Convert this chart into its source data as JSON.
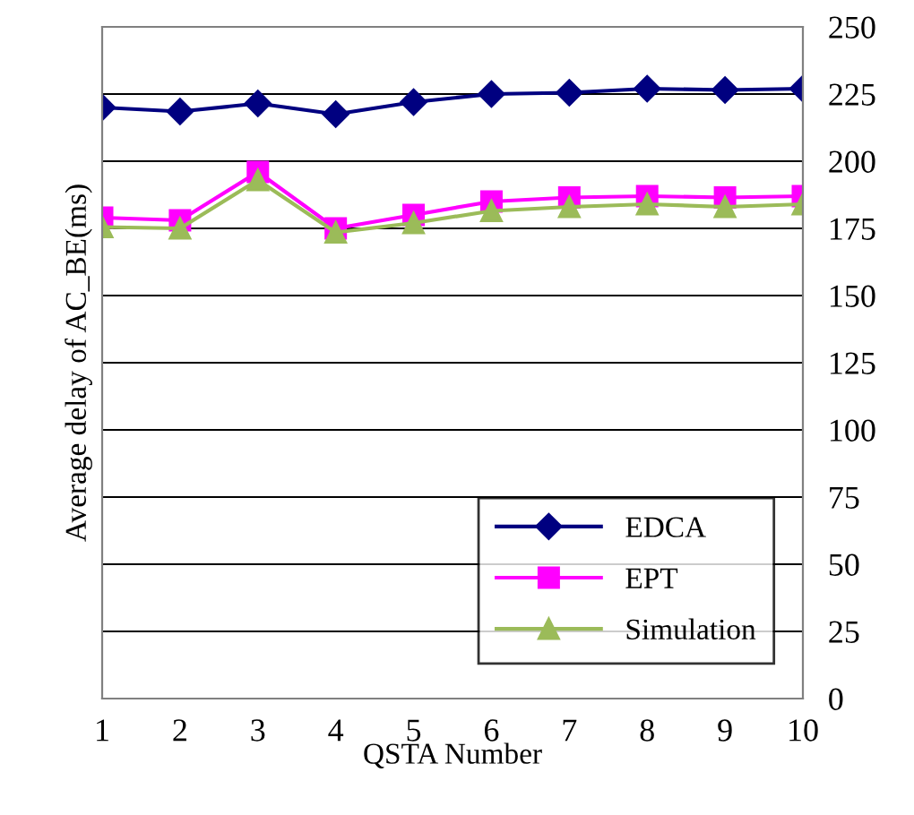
{
  "chart_data": {
    "type": "line",
    "xlabel": "QSTA Number",
    "ylabel": "Average delay of AC_BE(ms)",
    "x": [
      1,
      2,
      3,
      4,
      5,
      6,
      7,
      8,
      9,
      10
    ],
    "xlim": [
      1,
      10
    ],
    "xticks": [
      1,
      2,
      3,
      4,
      5,
      6,
      7,
      8,
      9,
      10
    ],
    "ylim": [
      0,
      250
    ],
    "yticks": [
      0,
      25,
      50,
      75,
      100,
      125,
      150,
      175,
      200,
      225,
      250
    ],
    "grid": "y",
    "legend": "bottom right",
    "series": [
      {
        "name": "EDCA",
        "color": "#000080",
        "marker": "diamond",
        "values": [
          220,
          218.5,
          221.5,
          217.5,
          222,
          225,
          225.5,
          227,
          226.5,
          227
        ]
      },
      {
        "name": "EPT",
        "color": "#ff00ff",
        "marker": "square",
        "values": [
          179,
          178,
          196,
          175,
          180,
          185,
          186.5,
          187,
          186.5,
          187
        ]
      },
      {
        "name": "Simulation",
        "color": "#9bbb59",
        "marker": "triangle",
        "values": [
          175.5,
          175,
          193,
          173.5,
          177,
          181.5,
          183,
          184,
          183,
          184
        ]
      }
    ]
  }
}
